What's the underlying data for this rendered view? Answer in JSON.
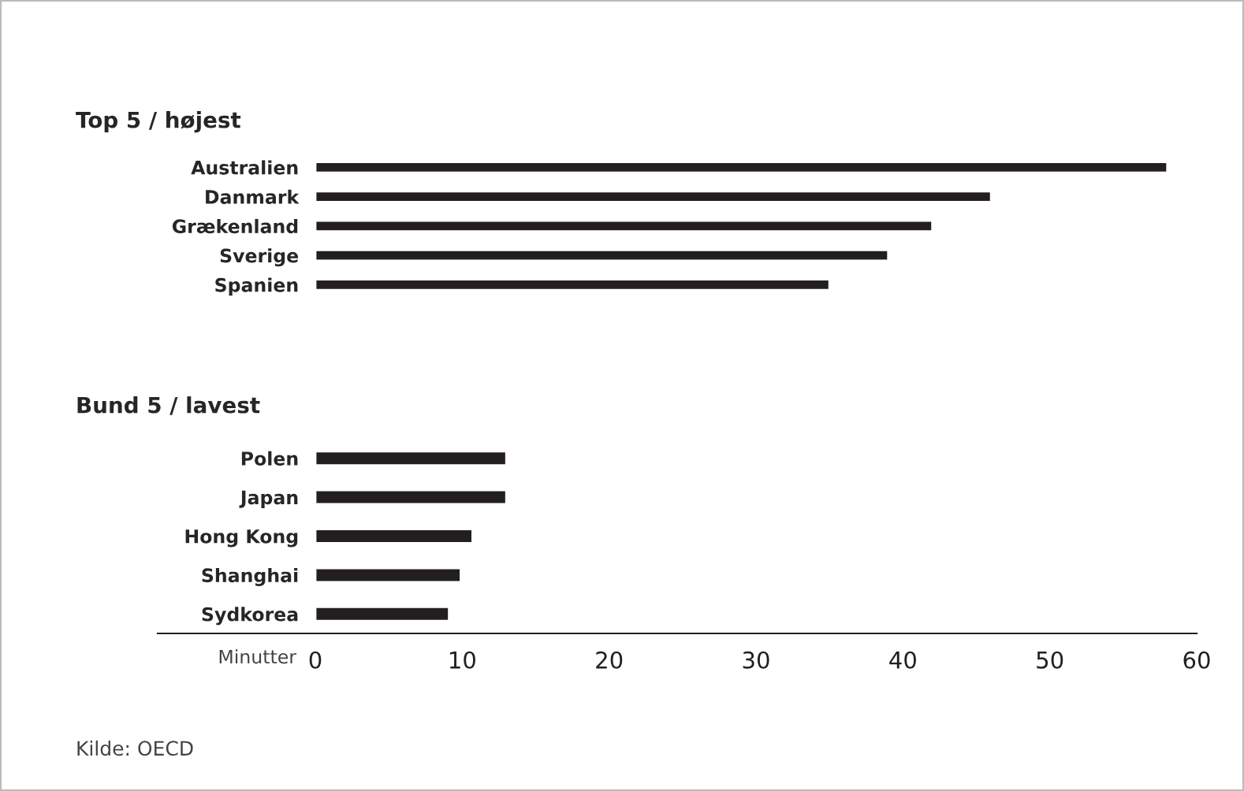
{
  "chart_data": [
    {
      "type": "bar",
      "orientation": "horizontal",
      "title": "Top 5 / højest",
      "categories": [
        "Australien",
        "Danmark",
        "Grækenland",
        "Sverige",
        "Spanien"
      ],
      "values": [
        58,
        46,
        42,
        39,
        35
      ],
      "color": "#231f20",
      "xlim": [
        0,
        60
      ],
      "tick_labels": "y",
      "grid": false
    },
    {
      "type": "bar",
      "orientation": "horizontal",
      "title": "Bund 5 / lavest",
      "xlabel": "Minutter",
      "categories": [
        "Polen",
        "Japan",
        "Hong Kong",
        "Shanghai",
        "Sydkorea"
      ],
      "values": [
        13,
        13,
        10.7,
        9.9,
        9.1
      ],
      "color": "#231f20",
      "xlim": [
        0,
        60
      ],
      "xticks": [
        0,
        10,
        20,
        30,
        40,
        50,
        60
      ],
      "grid": false,
      "annotations": [
        "Kilde: OECD"
      ]
    }
  ]
}
